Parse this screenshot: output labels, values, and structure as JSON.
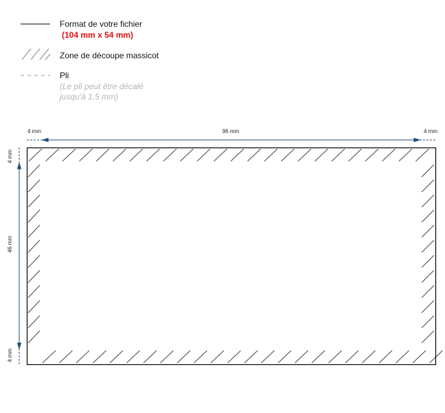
{
  "legend": {
    "format_label": "Format de votre fichier",
    "format_size": "(104 mm x 54 mm)",
    "cut_zone_label": "Zone de découpe massicot",
    "fold_label": "Pli",
    "fold_note": "(Le pli peut être décalé jusqu'à 1.5 mm)"
  },
  "dimensions": {
    "top_left": "4 mm",
    "top_center": "96 mm",
    "top_right": "4 mm",
    "left_top": "4 mm",
    "left_center": "46 mm",
    "left_bottom": "4 mm"
  },
  "colors": {
    "format_size": "#e01010",
    "dimension_line": "#1f4e79",
    "hatch": "#444444",
    "fold_note": "#b5b5b5"
  }
}
